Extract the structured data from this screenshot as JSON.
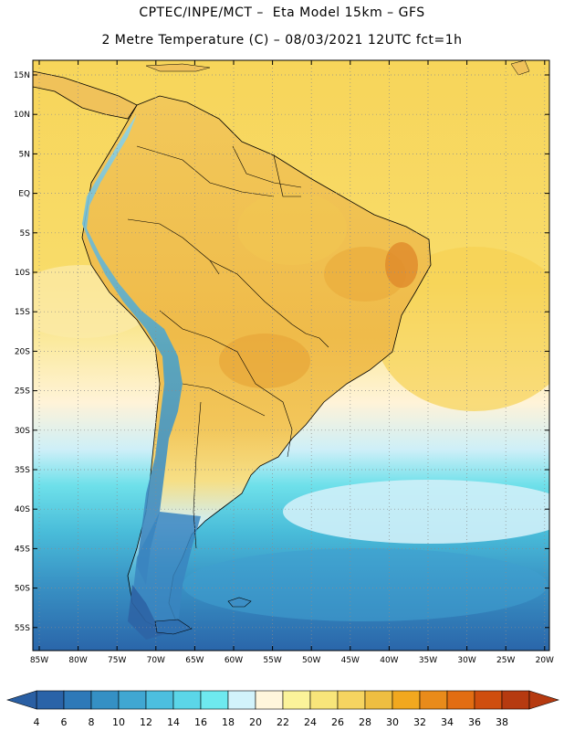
{
  "header": {
    "title_line1": "CPTEC/INPE/MCT –  Eta Model 15km – GFS",
    "title_line2": "2 Metre Temperature (C) – 08/03/2021 12UTC fct=1h"
  },
  "map": {
    "lat_labels": [
      "15N",
      "10N",
      "5N",
      "EQ",
      "5S",
      "10S",
      "15S",
      "20S",
      "25S",
      "30S",
      "35S",
      "40S",
      "45S",
      "50S",
      "55S"
    ],
    "lon_labels": [
      "85W",
      "80W",
      "75W",
      "70W",
      "65W",
      "60W",
      "55W",
      "50W",
      "45W",
      "40W",
      "35W",
      "30W",
      "25W",
      "20W"
    ],
    "field_colors": {
      "ocean_warm": "#f7d85a",
      "ocean_mild": "#fbe98f",
      "land_hot": "#e9a93b",
      "land_warm": "#efbe4c",
      "andes_cold": "#4ba3c9",
      "south_cold": "#2f6fb0"
    }
  },
  "colorbar": {
    "labels": [
      "4",
      "6",
      "8",
      "10",
      "12",
      "14",
      "16",
      "18",
      "20",
      "22",
      "24",
      "26",
      "28",
      "30",
      "32",
      "34",
      "36",
      "38"
    ],
    "colors": [
      "#2a63a8",
      "#2e79b8",
      "#3590c4",
      "#40a7d2",
      "#4cbfdf",
      "#5bd6e8",
      "#6ee9ef",
      "#d2f3fb",
      "#fff6dc",
      "#fbf39a",
      "#f8e57a",
      "#f6d460",
      "#efbe41",
      "#f1a81f",
      "#e98b1a",
      "#e26d12",
      "#cf4e0e",
      "#b63a10"
    ]
  }
}
